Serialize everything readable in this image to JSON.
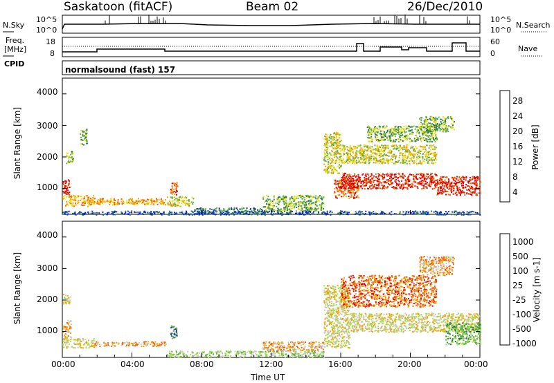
{
  "header": {
    "station": "Saskatoon (fitACF)",
    "beam": "Beam 02",
    "date": "26/Dec/2010"
  },
  "noise_panel": {
    "left_label": "N.Sky",
    "left_ticks": [
      "10^5",
      "10^0"
    ],
    "right_ticks": [
      "10^5",
      "10^0"
    ],
    "right_label": "N.Search"
  },
  "freq_panel": {
    "label_line1": "Freq.",
    "label_line2": "[MHz]",
    "left_ticks": [
      "18",
      "8"
    ],
    "right_ticks": [
      "60",
      "0"
    ],
    "right_label": "Nave"
  },
  "cpid_panel": {
    "label": "CPID",
    "value": "normalsound (fast) 157"
  },
  "chart_data": [
    {
      "type": "heatmap",
      "panel": "power",
      "ylabel": "Slant Range [km]",
      "yticks": [
        "4000",
        "3000",
        "2000",
        "1000"
      ],
      "ylim": [
        180,
        4500
      ],
      "xlim": [
        0,
        24
      ],
      "colorbar_label": "Power [dB]",
      "colorbar_ticks": [
        "28",
        "24",
        "20",
        "16",
        "12",
        "8",
        "4"
      ],
      "colorbar_colors": [
        "#e00000",
        "#f06000",
        "#f5a000",
        "#f0e000",
        "#60b040",
        "#2a7a4a",
        "#1a3a9a",
        "#0020ff"
      ],
      "scatter_regions": [
        {
          "t0": 0.0,
          "t1": 1.8,
          "r0": 450,
          "r1": 800,
          "level": 2
        },
        {
          "t0": 0.0,
          "t1": 0.4,
          "r0": 800,
          "r1": 1300,
          "level": 0
        },
        {
          "t0": 0.2,
          "t1": 0.6,
          "r0": 1800,
          "r1": 2200,
          "level": 4
        },
        {
          "t0": 1.0,
          "t1": 1.4,
          "r0": 2400,
          "r1": 2900,
          "level": 4
        },
        {
          "t0": 1.8,
          "t1": 6.0,
          "r0": 500,
          "r1": 700,
          "level": 2
        },
        {
          "t0": 6.2,
          "t1": 6.6,
          "r0": 800,
          "r1": 1200,
          "level": 1
        },
        {
          "t0": 6.0,
          "t1": 7.5,
          "r0": 450,
          "r1": 750,
          "level": 3
        },
        {
          "t0": 7.5,
          "t1": 11.5,
          "r0": 200,
          "r1": 400,
          "level": 5
        },
        {
          "t0": 11.5,
          "t1": 15.0,
          "r0": 300,
          "r1": 800,
          "level": 4
        },
        {
          "t0": 15.0,
          "t1": 16.0,
          "r0": 1500,
          "r1": 2800,
          "level": 3
        },
        {
          "t0": 15.6,
          "t1": 17.0,
          "r0": 700,
          "r1": 1300,
          "level": 1
        },
        {
          "t0": 16.0,
          "t1": 21.5,
          "r0": 1000,
          "r1": 1500,
          "level": 0
        },
        {
          "t0": 16.0,
          "t1": 21.5,
          "r0": 1800,
          "r1": 2400,
          "level": 3
        },
        {
          "t0": 17.5,
          "t1": 21.5,
          "r0": 2500,
          "r1": 3000,
          "level": 4
        },
        {
          "t0": 21.5,
          "t1": 24.0,
          "r0": 800,
          "r1": 1400,
          "level": 0
        },
        {
          "t0": 20.5,
          "t1": 22.5,
          "r0": 2800,
          "r1": 3300,
          "level": 4
        },
        {
          "t0": 0.0,
          "t1": 24.0,
          "r0": 180,
          "r1": 300,
          "level": 6
        }
      ]
    },
    {
      "type": "heatmap",
      "panel": "velocity",
      "ylabel": "Slant Range [km]",
      "yticks": [
        "4000",
        "3000",
        "2000",
        "1000"
      ],
      "ylim": [
        180,
        4500
      ],
      "xlim": [
        0,
        24
      ],
      "xticks": [
        "00:00",
        "04:00",
        "08:00",
        "12:00",
        "16:00",
        "20:00",
        "00:00"
      ],
      "xlabel": "Time UT",
      "colorbar_label": "Velocity [m s-1]",
      "colorbar_ticks": [
        "1000",
        "500",
        "100",
        "25",
        "-25",
        "-100",
        "-500",
        "-1000"
      ],
      "colorbar_colors": [
        "#1a3a9a",
        "#2a7a4a",
        "#60b040",
        "#a0e040",
        "#c8c8c0",
        "#f5a000",
        "#f06000",
        "#e00000"
      ],
      "scatter_regions": [
        {
          "t0": 0.0,
          "t1": 0.5,
          "r0": 800,
          "r1": 1400,
          "level": 5
        },
        {
          "t0": 0.0,
          "t1": 1.8,
          "r0": 500,
          "r1": 800,
          "level": 4
        },
        {
          "t0": 0.0,
          "t1": 0.5,
          "r0": 1900,
          "r1": 2200,
          "level": 4
        },
        {
          "t0": 1.8,
          "t1": 6.0,
          "r0": 550,
          "r1": 700,
          "level": 5
        },
        {
          "t0": 6.2,
          "t1": 6.6,
          "r0": 800,
          "r1": 1200,
          "level": 1
        },
        {
          "t0": 6.0,
          "t1": 15.0,
          "r0": 200,
          "r1": 400,
          "level": 3
        },
        {
          "t0": 11.5,
          "t1": 15.0,
          "r0": 400,
          "r1": 700,
          "level": 5
        },
        {
          "t0": 15.0,
          "t1": 16.5,
          "r0": 500,
          "r1": 2500,
          "level": 4
        },
        {
          "t0": 16.5,
          "t1": 24.0,
          "r0": 1000,
          "r1": 1600,
          "level": 4
        },
        {
          "t0": 16.0,
          "t1": 21.5,
          "r0": 1800,
          "r1": 2800,
          "level": 6
        },
        {
          "t0": 20.5,
          "t1": 22.5,
          "r0": 2800,
          "r1": 3400,
          "level": 5
        },
        {
          "t0": 22.0,
          "t1": 24.0,
          "r0": 600,
          "r1": 1300,
          "level": 2
        }
      ]
    }
  ]
}
